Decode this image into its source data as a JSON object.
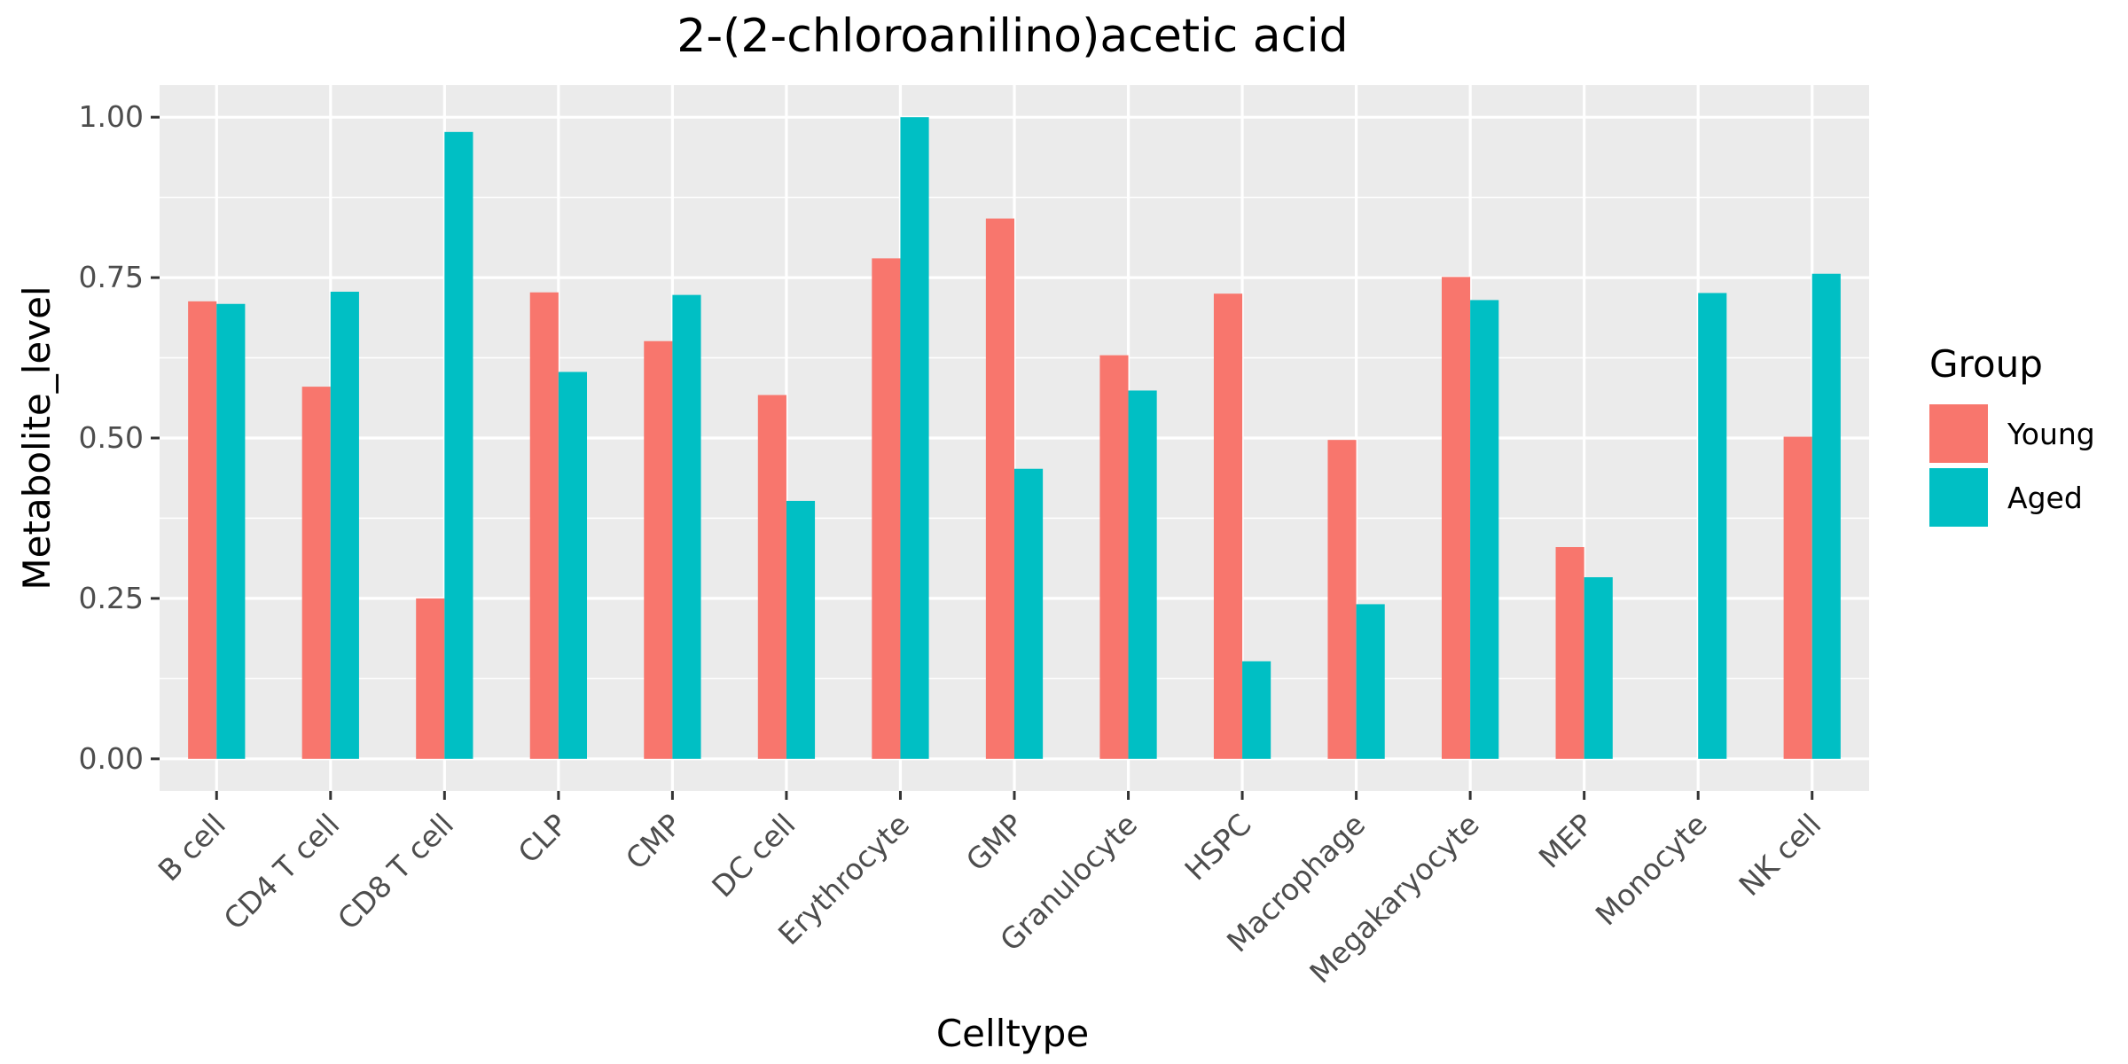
{
  "chart_data": {
    "type": "bar",
    "title": "2-(2-chloroanilino)acetic acid",
    "xlabel": "Celltype",
    "ylabel": "Metabolite_level",
    "categories": [
      "B cell",
      "CD4 T cell",
      "CD8 T cell",
      "CLP",
      "CMP",
      "DC cell",
      "Erythrocyte",
      "GMP",
      "Granulocyte",
      "HSPC",
      "Macrophage",
      "Megakaryocyte",
      "MEP",
      "Monocyte",
      "NK cell"
    ],
    "series": [
      {
        "name": "Young",
        "color": "#F8766D",
        "values": [
          0.713,
          0.58,
          0.25,
          0.727,
          0.651,
          0.567,
          0.78,
          0.842,
          0.629,
          0.725,
          0.497,
          0.751,
          0.33,
          null,
          0.502
        ]
      },
      {
        "name": "Aged",
        "color": "#00BFC4",
        "values": [
          0.709,
          0.728,
          0.977,
          0.603,
          0.723,
          0.402,
          1.0,
          0.452,
          0.574,
          0.152,
          0.241,
          0.715,
          0.283,
          0.726,
          0.756
        ]
      }
    ],
    "yticks": [
      "0.00",
      "0.25",
      "0.50",
      "0.75",
      "1.00"
    ],
    "ylim": [
      -0.05,
      1.05
    ],
    "legend": {
      "title": "Group",
      "placement": "right"
    },
    "grid": true,
    "panel_background": "#EBEBEB",
    "grid_color": "#FFFFFF"
  }
}
